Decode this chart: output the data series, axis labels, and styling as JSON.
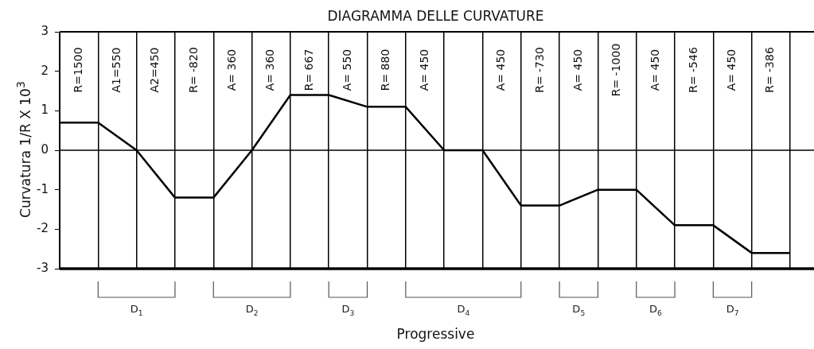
{
  "chart_data": {
    "type": "line",
    "title": "DIAGRAMMA DELLE CURVATURE",
    "xlabel": "Progressive",
    "ylabel": "Curvatura 1/R X 10$^{3}$",
    "categories": [
      null,
      null,
      null,
      null,
      null,
      null,
      null,
      null,
      null,
      null,
      null,
      null,
      null,
      null,
      null,
      null,
      null,
      null,
      null,
      null
    ],
    "series": [
      {
        "color": "#000000",
        "values": [
          0.7,
          0.7,
          0,
          -1.2,
          -1.2,
          0,
          1.4,
          1.4,
          1.1,
          1.1,
          0,
          0,
          -1.4,
          -1.4,
          -1.0,
          -1.0,
          -1.9,
          -1.9,
          -2.6,
          -2.6
        ]
      }
    ],
    "ylim": [
      -3,
      3
    ],
    "yticks": [
      -3,
      -2,
      -1,
      0,
      1,
      2,
      3
    ],
    "tick_labels": "y",
    "grid": "x",
    "legend": false,
    "marker": "none",
    "line_style": "solid",
    "ref_lines": [
      {
        "axis": "y",
        "value": 0
      }
    ],
    "annotations": [
      "R=1500",
      "A1=550",
      "A2=450",
      "R= -820",
      "A= 360",
      "A= 360",
      "R= 667",
      "A= 550",
      "R= 880",
      "A= 450",
      "A= 450",
      "R= -730",
      "A= 450",
      "R= -1000",
      "A= 450",
      "R= -546",
      "A= 450",
      "R= -386",
      "D$_{1}$",
      "D$_{2}$",
      "D$_{3}$",
      "D$_{4}$",
      "D$_{5}$",
      "D$_{6}$",
      "D$_{7}$"
    ]
  }
}
